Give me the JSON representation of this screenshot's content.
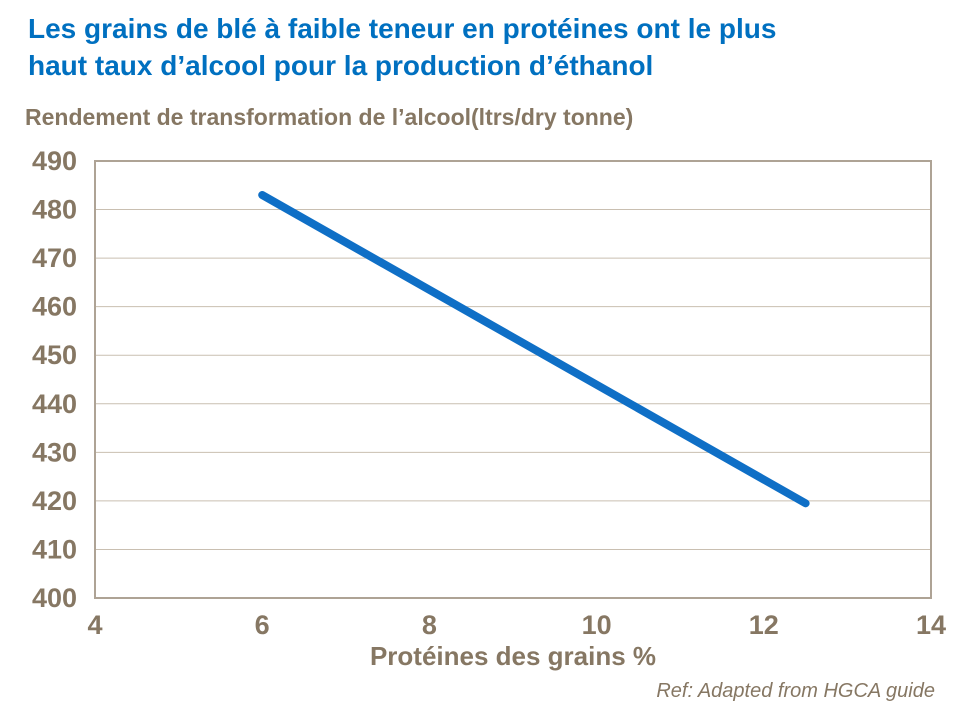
{
  "header": {
    "title_lines": [
      "Les grains de blé à faible teneur en protéines ont le plus",
      "haut taux d’alcool pour la production d’éthanol"
    ]
  },
  "footer": {
    "reference": "Ref: Adapted from HGCA guide"
  },
  "colors": {
    "title_blue": "#0070C0",
    "line_blue": "#0F6FC6",
    "axis_text_brown": "#867763",
    "gridline": "#C9BFB1",
    "plot_border": "#AEA395",
    "background": "#FFFFFF"
  },
  "chart_data": {
    "type": "line",
    "title": "Rendement de transformation de l’alcool(ltrs/dry tonne)",
    "xlabel": "Protéines des grains %",
    "ylabel": "",
    "xlim": [
      4,
      14
    ],
    "ylim": [
      400,
      490
    ],
    "x_ticks": [
      4,
      6,
      8,
      10,
      12,
      14
    ],
    "y_ticks": [
      400,
      410,
      420,
      430,
      440,
      450,
      460,
      470,
      480,
      490
    ],
    "grid": "horizontal-only",
    "legend": "none",
    "series": [
      {
        "x": [
          6,
          12.5
        ],
        "y": [
          483,
          419.5
        ],
        "color": "#0F6FC6",
        "stroke_width": 8
      }
    ]
  }
}
